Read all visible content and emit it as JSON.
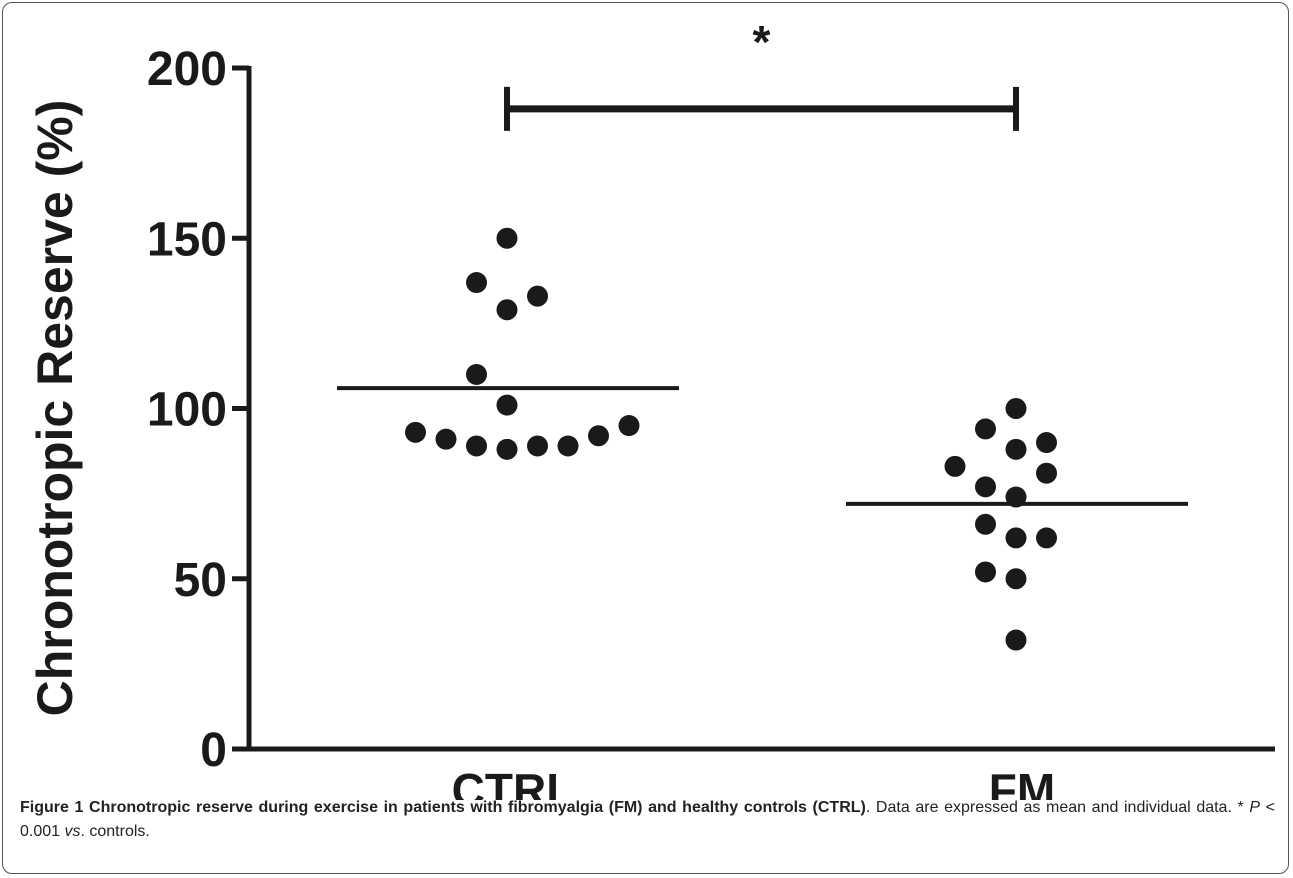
{
  "chart_data": {
    "type": "scatter",
    "ylabel": "Chronotropic Reserve (%)",
    "xlabel": "",
    "categories": [
      "CTRL",
      "FM"
    ],
    "ylim": [
      0,
      200
    ],
    "yticks": [
      0,
      50,
      100,
      150,
      200
    ],
    "grid": false,
    "groups": [
      {
        "category": "CTRL",
        "mean": 106,
        "points": [
          {
            "offset": 0,
            "y": 150
          },
          {
            "offset": -1,
            "y": 137
          },
          {
            "offset": 1,
            "y": 133
          },
          {
            "offset": 0,
            "y": 129
          },
          {
            "offset": -1,
            "y": 110
          },
          {
            "offset": 0,
            "y": 101
          },
          {
            "offset": -3,
            "y": 93
          },
          {
            "offset": -2,
            "y": 91
          },
          {
            "offset": -1,
            "y": 89
          },
          {
            "offset": 0,
            "y": 88
          },
          {
            "offset": 1,
            "y": 89
          },
          {
            "offset": 2,
            "y": 89
          },
          {
            "offset": 3,
            "y": 92
          },
          {
            "offset": 4,
            "y": 95
          }
        ]
      },
      {
        "category": "FM",
        "mean": 72,
        "points": [
          {
            "offset": 0,
            "y": 100
          },
          {
            "offset": -1,
            "y": 94
          },
          {
            "offset": 0,
            "y": 88
          },
          {
            "offset": 1,
            "y": 90
          },
          {
            "offset": -2,
            "y": 83
          },
          {
            "offset": 1,
            "y": 81
          },
          {
            "offset": -1,
            "y": 77
          },
          {
            "offset": 0,
            "y": 74
          },
          {
            "offset": -1,
            "y": 66
          },
          {
            "offset": 0,
            "y": 62
          },
          {
            "offset": 1,
            "y": 62
          },
          {
            "offset": -1,
            "y": 52
          },
          {
            "offset": 0,
            "y": 50
          },
          {
            "offset": 0,
            "y": 32
          }
        ]
      }
    ],
    "significance": {
      "between": [
        "CTRL",
        "FM"
      ],
      "y": 188,
      "marker": "*"
    }
  },
  "caption": {
    "title": "Figure 1 Chronotropic reserve during exercise in patients with fibromyalgia (FM) and healthy controls (CTRL)",
    "text_a": ". Data are expressed as mean and individual data. * ",
    "p": "P",
    "text_b": " < 0.001 ",
    "vs": "vs",
    "text_c": ". controls."
  }
}
